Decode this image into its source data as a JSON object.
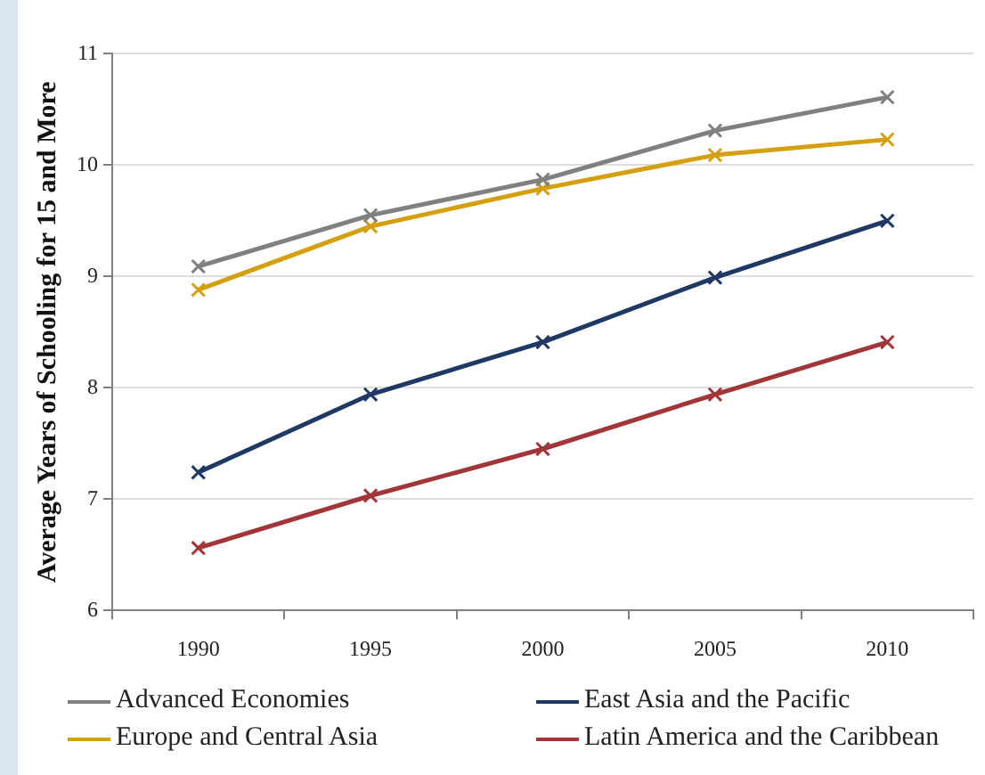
{
  "chart_data": {
    "type": "line",
    "ylabel": "Average Years of Schooling for 15 and More",
    "categories": [
      "1990",
      "1995",
      "2000",
      "2005",
      "2010"
    ],
    "series": [
      {
        "name": "Advanced Economies",
        "color": "#808080",
        "values": [
          9.09,
          9.55,
          9.87,
          10.31,
          10.61
        ]
      },
      {
        "name": "East Asia and the Pacific",
        "color": "#1f3864",
        "values": [
          7.24,
          7.94,
          8.41,
          8.99,
          9.5
        ]
      },
      {
        "name": "Europe and Central Asia",
        "color": "#d4a010",
        "values": [
          8.88,
          9.45,
          9.79,
          10.09,
          10.23
        ]
      },
      {
        "name": "Latin America and the Caribbean",
        "color": "#a0353a",
        "values": [
          6.56,
          7.03,
          7.45,
          7.94,
          8.41
        ]
      }
    ],
    "ylim": [
      6,
      11
    ],
    "yticks": [
      6,
      7,
      8,
      9,
      10,
      11
    ],
    "grid": "y",
    "legend": "bottom",
    "marker": "cross",
    "line_style": "solid"
  }
}
